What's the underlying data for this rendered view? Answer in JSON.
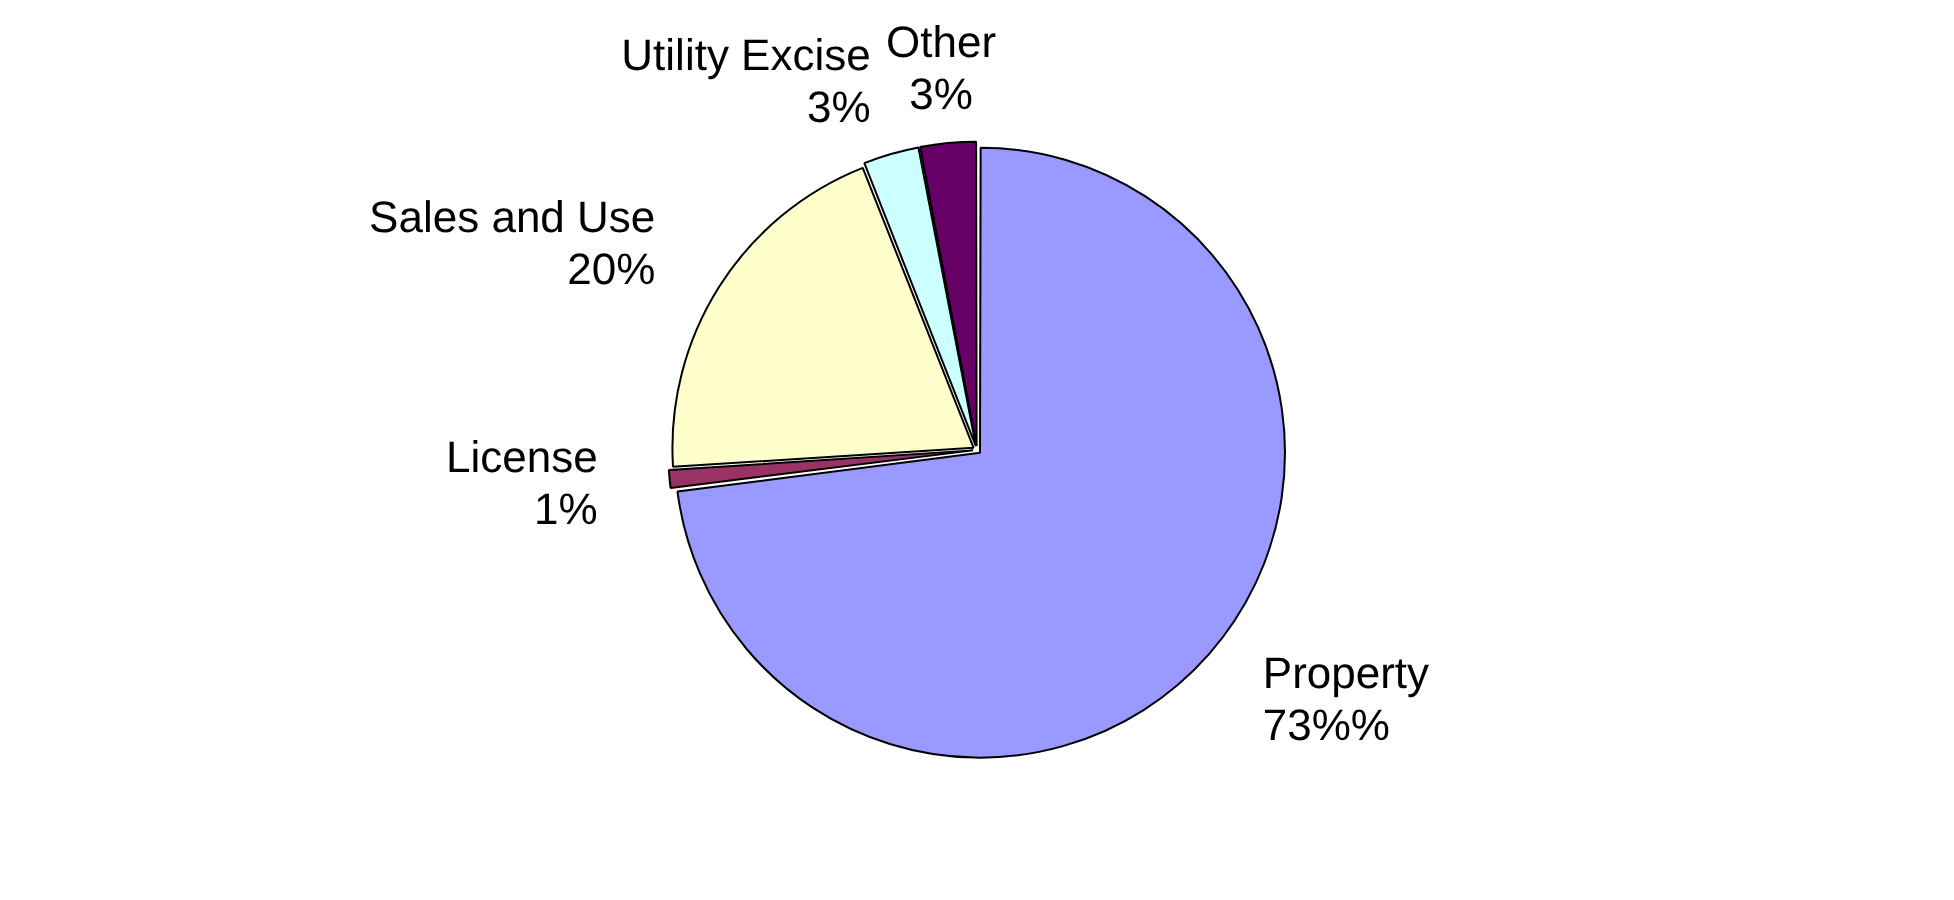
{
  "chart_data": {
    "type": "pie",
    "categories": [
      "Property",
      "License",
      "Sales and Use",
      "Utility Excise",
      "Other"
    ],
    "values": [
      73,
      1,
      20,
      3,
      3
    ],
    "value_labels": [
      "73%%",
      "1%",
      "20%",
      "3%",
      "3%"
    ],
    "colors": [
      "#9999ff",
      "#993366",
      "#ffffcc",
      "#ccffff",
      "#660066"
    ]
  }
}
